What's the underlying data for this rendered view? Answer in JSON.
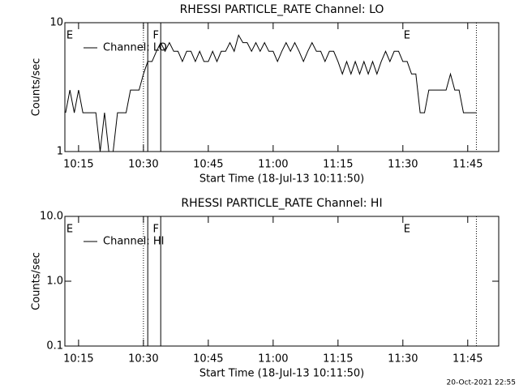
{
  "chart_data": [
    {
      "type": "line",
      "title": "RHESSI PARTICLE_RATE Channel: LO",
      "xlabel": "Start Time (18-Jul-13 10:11:50)",
      "ylabel": "Counts/sec",
      "log_y": true,
      "legend": "upper left",
      "xlim": [
        "10:11:50",
        "11:52:10"
      ],
      "xticks": [
        "10:15",
        "10:30",
        "10:45",
        "11:00",
        "11:15",
        "11:30",
        "11:45"
      ],
      "ylim": [
        1,
        10
      ],
      "yticks": [
        1,
        10
      ],
      "lines": [
        {
          "x": "10:30",
          "style": "dotted"
        },
        {
          "x": "10:31",
          "style": "solid"
        },
        {
          "x": "10:34",
          "style": "solid"
        },
        {
          "x": "11:47",
          "style": "dotted"
        }
      ],
      "flags": [
        {
          "label": "E",
          "x": "10:12"
        },
        {
          "label": "F",
          "x": "10:32"
        },
        {
          "label": "E",
          "x": "11:30"
        }
      ],
      "series": [
        {
          "name": "Channel: LO",
          "color": "#000000",
          "x": [
            "10:12",
            "10:13",
            "10:14",
            "10:15",
            "10:16",
            "10:17",
            "10:18",
            "10:19",
            "10:20",
            "10:21",
            "10:22",
            "10:23",
            "10:24",
            "10:25",
            "10:26",
            "10:27",
            "10:28",
            "10:29",
            "10:30",
            "10:31",
            "10:32",
            "10:33",
            "10:34",
            "10:35",
            "10:36",
            "10:37",
            "10:38",
            "10:39",
            "10:40",
            "10:41",
            "10:42",
            "10:43",
            "10:44",
            "10:45",
            "10:46",
            "10:47",
            "10:48",
            "10:49",
            "10:50",
            "10:51",
            "10:52",
            "10:53",
            "10:54",
            "10:55",
            "10:56",
            "10:57",
            "10:58",
            "10:59",
            "11:00",
            "11:01",
            "11:02",
            "11:03",
            "11:04",
            "11:05",
            "11:06",
            "11:07",
            "11:08",
            "11:09",
            "11:10",
            "11:11",
            "11:12",
            "11:13",
            "11:14",
            "11:15",
            "11:16",
            "11:17",
            "11:18",
            "11:19",
            "11:20",
            "11:21",
            "11:22",
            "11:23",
            "11:24",
            "11:25",
            "11:26",
            "11:27",
            "11:28",
            "11:29",
            "11:30",
            "11:31",
            "11:32",
            "11:33",
            "11:34",
            "11:35",
            "11:36",
            "11:37",
            "11:38",
            "11:39",
            "11:40",
            "11:41",
            "11:42",
            "11:43",
            "11:44",
            "11:45",
            "11:46",
            "11:47"
          ],
          "values": [
            2,
            3,
            2,
            3,
            2,
            2,
            2,
            2,
            1,
            2,
            1,
            1,
            2,
            2,
            2,
            3,
            3,
            3,
            4,
            5,
            5,
            6,
            7,
            6,
            7,
            6,
            6,
            5,
            6,
            6,
            5,
            6,
            5,
            5,
            6,
            5,
            6,
            6,
            7,
            6,
            8,
            7,
            7,
            6,
            7,
            6,
            7,
            6,
            6,
            5,
            6,
            7,
            6,
            7,
            6,
            5,
            6,
            7,
            6,
            6,
            5,
            6,
            6,
            5,
            4,
            5,
            4,
            5,
            4,
            5,
            4,
            5,
            4,
            5,
            6,
            5,
            6,
            6,
            5,
            5,
            4,
            4,
            2,
            2,
            3,
            3,
            3,
            3,
            3,
            4,
            3,
            3,
            2,
            2,
            2,
            2
          ]
        }
      ]
    },
    {
      "type": "line",
      "title": "RHESSI PARTICLE_RATE Channel: HI",
      "xlabel": "Start Time (18-Jul-13 10:11:50)",
      "ylabel": "Counts/sec",
      "log_y": true,
      "legend": "upper left",
      "xlim": [
        "10:11:50",
        "11:52:10"
      ],
      "xticks": [
        "10:15",
        "10:30",
        "10:45",
        "11:00",
        "11:15",
        "11:30",
        "11:45"
      ],
      "ylim": [
        0.1,
        10
      ],
      "yticks": [
        {
          "value": 0.1,
          "label": "0.1"
        },
        {
          "value": 1,
          "label": "1.0"
        },
        {
          "value": 10,
          "label": "10.0"
        }
      ],
      "lines": [
        {
          "x": "10:30",
          "style": "dotted"
        },
        {
          "x": "10:31",
          "style": "solid"
        },
        {
          "x": "10:34",
          "style": "solid"
        },
        {
          "x": "11:47",
          "style": "dotted"
        }
      ],
      "flags": [
        {
          "label": "E",
          "x": "10:12"
        },
        {
          "label": "F",
          "x": "10:32"
        },
        {
          "label": "E",
          "x": "11:30"
        }
      ],
      "series": [
        {
          "name": "Channel: HI",
          "color": "#000000",
          "x": [],
          "values": []
        }
      ]
    }
  ],
  "footer": "20-Oct-2021 22:55"
}
